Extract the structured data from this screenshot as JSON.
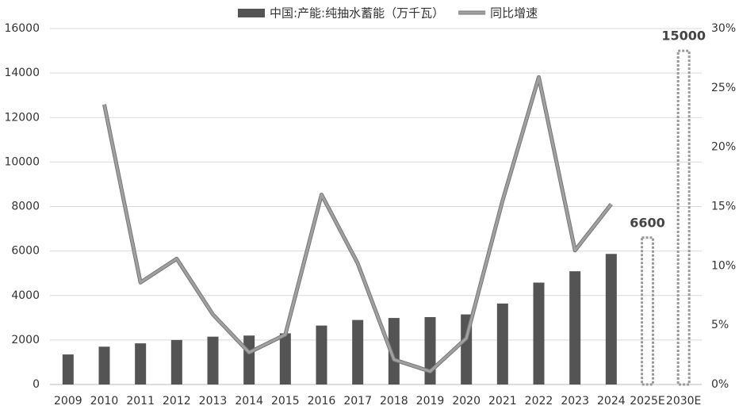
{
  "chart_data": {
    "type": "bar_line",
    "categories": [
      "2009",
      "2010",
      "2011",
      "2012",
      "2013",
      "2014",
      "2015",
      "2016",
      "2017",
      "2018",
      "2019",
      "2020",
      "2021",
      "2022",
      "2023",
      "2024",
      "2025E",
      "2030E"
    ],
    "series": [
      {
        "name": "中国:产能:纯抽水蓄能（万千瓦）",
        "type": "bar",
        "color": "#545454",
        "values": [
          1350,
          1700,
          1850,
          2000,
          2150,
          2200,
          2300,
          2650,
          2900,
          2990,
          3030,
          3150,
          3640,
          4580,
          5090,
          5870,
          6600,
          15000
        ],
        "dashed": [
          false,
          false,
          false,
          false,
          false,
          false,
          false,
          false,
          false,
          false,
          false,
          false,
          false,
          false,
          false,
          false,
          true,
          true
        ],
        "data_labels": [
          false,
          false,
          false,
          false,
          false,
          false,
          false,
          false,
          false,
          false,
          false,
          false,
          false,
          false,
          false,
          false,
          true,
          true
        ]
      },
      {
        "name": "同比增速",
        "type": "line",
        "axis": "y2",
        "color": "#a0a0a0",
        "values": [
          null,
          23.6,
          8.6,
          10.6,
          5.9,
          2.7,
          4.2,
          16.0,
          10.2,
          2.1,
          1.1,
          3.9,
          15.5,
          25.9,
          11.3,
          15.2,
          null,
          null
        ]
      }
    ],
    "ylim": [
      0,
      16000
    ],
    "yticks": [
      0,
      2000,
      4000,
      6000,
      8000,
      10000,
      12000,
      14000,
      16000
    ],
    "y2lim": [
      0,
      30
    ],
    "y2ticks": [
      {
        "value": 0,
        "label": "0%"
      },
      {
        "value": 5,
        "label": "5%"
      },
      {
        "value": 10,
        "label": "10%"
      },
      {
        "value": 15,
        "label": "15%"
      },
      {
        "value": 20,
        "label": "20%"
      },
      {
        "value": 25,
        "label": "25%"
      },
      {
        "value": 30,
        "label": "30%"
      }
    ],
    "grid": true
  }
}
